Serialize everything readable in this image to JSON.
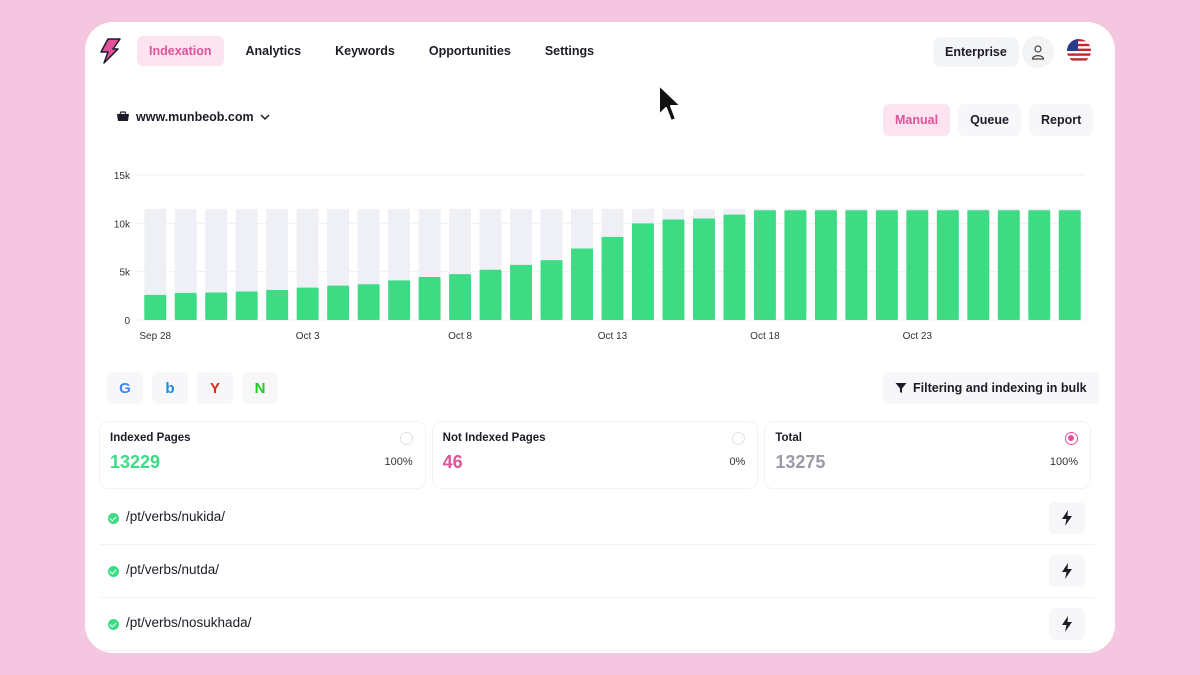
{
  "nav": {
    "items": [
      {
        "label": "Indexation",
        "active": true
      },
      {
        "label": "Analytics",
        "active": false
      },
      {
        "label": "Keywords",
        "active": false
      },
      {
        "label": "Opportunities",
        "active": false
      },
      {
        "label": "Settings",
        "active": false
      }
    ],
    "plan_label": "Enterprise"
  },
  "site": {
    "domain": "www.munbeob.com"
  },
  "view_tabs": [
    {
      "label": "Manual",
      "active": true
    },
    {
      "label": "Queue",
      "active": false
    },
    {
      "label": "Report",
      "active": false
    }
  ],
  "chart_data": {
    "type": "bar",
    "y_ticks": [
      "15k",
      "10k",
      "5k",
      "0"
    ],
    "ylim": [
      0,
      15000
    ],
    "x_tick_labels": [
      "Sep 28",
      "Oct 3",
      "Oct 8",
      "Oct 13",
      "Oct 18",
      "Oct 23"
    ],
    "categories": [
      "Sep 28",
      "Sep 29",
      "Sep 30",
      "Oct 1",
      "Oct 2",
      "Oct 3",
      "Oct 4",
      "Oct 5",
      "Oct 6",
      "Oct 7",
      "Oct 8",
      "Oct 9",
      "Oct 10",
      "Oct 11",
      "Oct 12",
      "Oct 13",
      "Oct 14",
      "Oct 15",
      "Oct 16",
      "Oct 17",
      "Oct 18",
      "Oct 19",
      "Oct 20",
      "Oct 21",
      "Oct 22",
      "Oct 23",
      "Oct 24",
      "Oct 25",
      "Oct 26",
      "Oct 27",
      "Oct 28"
    ],
    "series": [
      {
        "values": [
          2600,
          2800,
          2850,
          2950,
          3100,
          3350,
          3550,
          3700,
          4100,
          4450,
          4750,
          5200,
          5700,
          6200,
          7400,
          8600,
          10000,
          10400,
          10500,
          10900,
          11350,
          11350,
          11350,
          11350,
          11350,
          11350,
          11350,
          11350,
          11350,
          11350,
          11350
        ]
      },
      {
        "values": [
          11500,
          11500,
          11500,
          11500,
          11500,
          11500,
          11500,
          11500,
          11500,
          11500,
          11500,
          11500,
          11500,
          11500,
          11500,
          11500,
          11500,
          11500,
          11500,
          11500,
          11500,
          11500,
          11500,
          11500,
          11500,
          11500,
          11500,
          11500,
          11500,
          11500,
          11500
        ]
      }
    ],
    "colors": {
      "indexed": "#3ddc84",
      "total": "#eef0f5"
    },
    "grid": true
  },
  "engines": [
    {
      "icon": "google-icon",
      "glyph": "G",
      "color": "#4285f4"
    },
    {
      "icon": "bing-icon",
      "glyph": "b",
      "color": "#1a8fd6"
    },
    {
      "icon": "yandex-icon",
      "glyph": "Y",
      "color": "#e0281c"
    },
    {
      "icon": "naver-icon",
      "glyph": "N",
      "color": "#19ce1e"
    }
  ],
  "filter": {
    "label": "Filtering and indexing in bulk",
    "icon": "filter-icon"
  },
  "stats": [
    {
      "label": "Indexed Pages",
      "value": "13229",
      "pct": "100%",
      "color": "#3ddc84",
      "checked": false
    },
    {
      "label": "Not Indexed Pages",
      "value": "46",
      "pct": "0%",
      "color": "#e0529a",
      "checked": false
    },
    {
      "label": "Total",
      "value": "13275",
      "pct": "100%",
      "color": "#9a9aa8",
      "checked": true
    }
  ],
  "urls": [
    {
      "path": "/pt/verbs/nukida/"
    },
    {
      "path": "/pt/verbs/nutda/"
    },
    {
      "path": "/pt/verbs/nosukhada/"
    }
  ],
  "accent": "#e0529a"
}
